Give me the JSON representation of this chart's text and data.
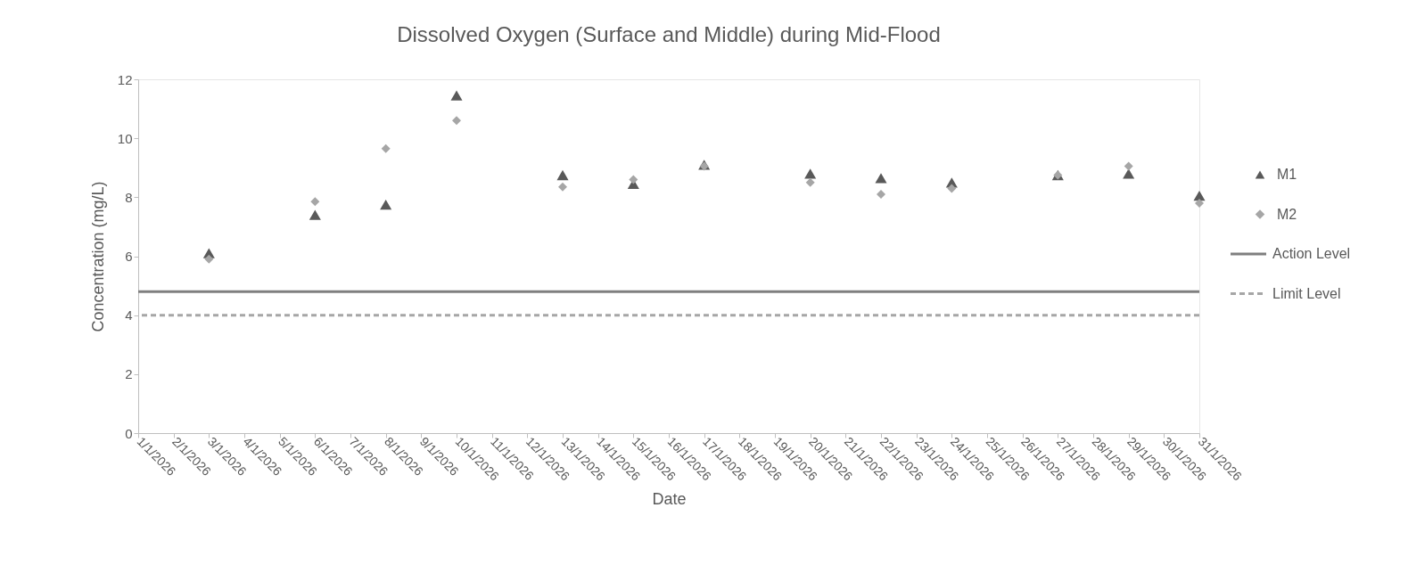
{
  "chart_data": {
    "type": "scatter",
    "title": "Dissolved Oxygen (Surface and Middle) during Mid-Flood",
    "xlabel": "Date",
    "ylabel": "Concentration (mg/L)",
    "categories": [
      "1/1/2026",
      "2/1/2026",
      "3/1/2026",
      "4/1/2026",
      "5/1/2026",
      "6/1/2026",
      "7/1/2026",
      "8/1/2026",
      "9/1/2026",
      "10/1/2026",
      "11/1/2026",
      "12/1/2026",
      "13/1/2026",
      "14/1/2026",
      "15/1/2026",
      "16/1/2026",
      "17/1/2026",
      "18/1/2026",
      "19/1/2026",
      "20/1/2026",
      "21/1/2026",
      "22/1/2026",
      "23/1/2026",
      "24/1/2026",
      "25/1/2026",
      "26/1/2026",
      "27/1/2026",
      "28/1/2026",
      "29/1/2026",
      "30/1/2026",
      "31/1/2026"
    ],
    "series": [
      {
        "name": "M1",
        "color": "#595959",
        "marker": "triangle",
        "values": [
          null,
          null,
          6.1,
          null,
          null,
          7.4,
          null,
          7.75,
          null,
          11.45,
          null,
          null,
          8.75,
          null,
          8.45,
          null,
          9.1,
          null,
          null,
          8.8,
          null,
          8.65,
          null,
          8.5,
          null,
          null,
          8.75,
          null,
          8.8,
          null,
          8.05
        ]
      },
      {
        "name": "M2",
        "color": "#a6a6a6",
        "marker": "diamond",
        "values": [
          null,
          null,
          5.9,
          null,
          null,
          7.85,
          null,
          9.65,
          null,
          10.6,
          null,
          null,
          8.35,
          null,
          8.6,
          null,
          9.05,
          null,
          null,
          8.5,
          null,
          8.1,
          null,
          8.3,
          null,
          null,
          8.75,
          null,
          9.05,
          null,
          7.8
        ]
      }
    ],
    "ref_lines": [
      {
        "axis": "y",
        "value": 4.8,
        "label": "Action Level",
        "color": "#7f7f7f",
        "line_style": "solid"
      },
      {
        "axis": "y",
        "value": 4.0,
        "label": "Limit Level",
        "color": "#a6a6a6",
        "line_style": "dashed"
      }
    ],
    "ylim": [
      0,
      12
    ],
    "yticks": [
      0,
      2,
      4,
      6,
      8,
      10,
      12
    ],
    "grid": false,
    "legend": "right"
  }
}
